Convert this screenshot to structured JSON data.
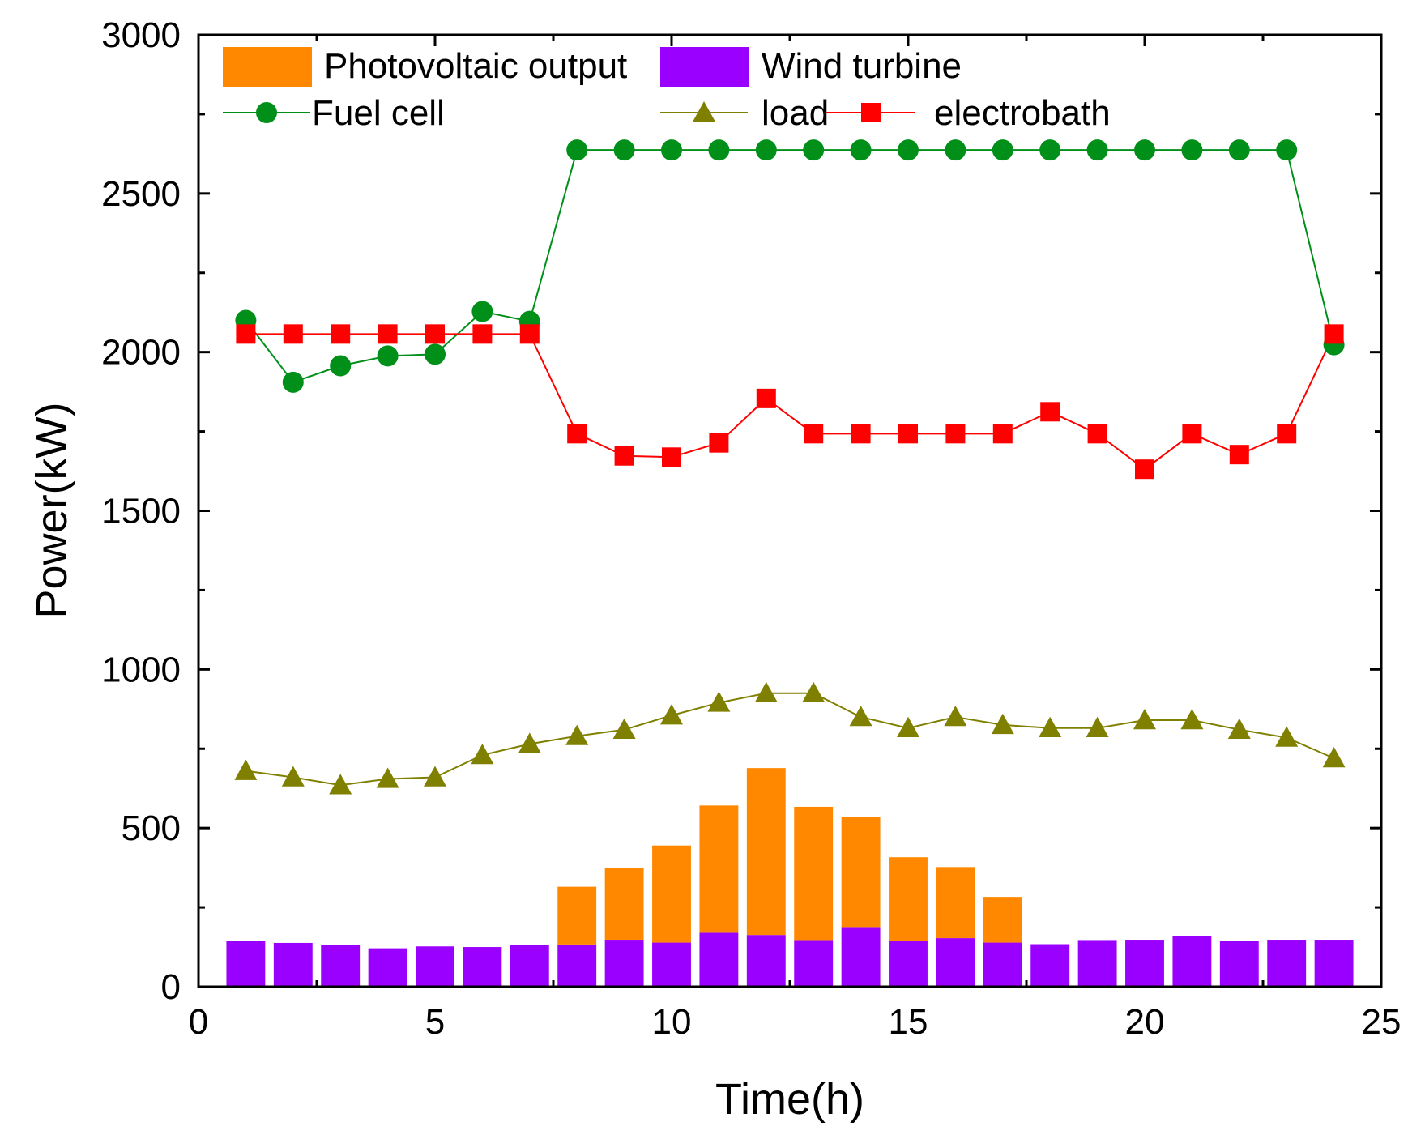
{
  "chart_data": {
    "type": "bar+line",
    "xlabel": "Time(h)",
    "ylabel": "Power(kW)",
    "xlim": [
      0,
      25
    ],
    "ylim": [
      0,
      3000
    ],
    "xticks": [
      0,
      5,
      10,
      15,
      20,
      25
    ],
    "yticks": [
      0,
      500,
      1000,
      1500,
      2000,
      2500,
      3000
    ],
    "x": [
      1,
      2,
      3,
      4,
      5,
      6,
      7,
      8,
      9,
      10,
      11,
      12,
      13,
      14,
      15,
      16,
      17,
      18,
      19,
      20,
      21,
      22,
      23,
      24
    ],
    "bars": [
      {
        "name": "Wind turbine",
        "color": "#9a00ff",
        "values": [
          143,
          138,
          131,
          121,
          127,
          125,
          132,
          133,
          148,
          139,
          170,
          163,
          147,
          188,
          143,
          153,
          139,
          134,
          147,
          148,
          159,
          144,
          148,
          148
        ]
      },
      {
        "name": "Photovoltaic output",
        "color": "#ff8800",
        "values": [
          0,
          0,
          0,
          0,
          0,
          0,
          0,
          182,
          225,
          306,
          401,
          526,
          420,
          348,
          265,
          224,
          144,
          0,
          0,
          0,
          0,
          0,
          0,
          0
        ]
      }
    ],
    "series": [
      {
        "name": "Fuel cell",
        "color": "#00901a",
        "marker": "circle",
        "values": [
          2100,
          1905,
          1957,
          1988,
          1993,
          2128,
          2097,
          2637,
          2637,
          2637,
          2637,
          2637,
          2637,
          2637,
          2637,
          2637,
          2637,
          2637,
          2637,
          2637,
          2637,
          2637,
          2637,
          2023
        ]
      },
      {
        "name": "load",
        "color": "#808000",
        "marker": "triangle",
        "values": [
          680,
          660,
          635,
          655,
          660,
          730,
          765,
          790,
          810,
          855,
          895,
          925,
          925,
          850,
          815,
          850,
          825,
          815,
          815,
          840,
          840,
          810,
          785,
          720
        ]
      },
      {
        "name": "electrobath",
        "color": "#ff0000",
        "marker": "square",
        "values": [
          2057,
          2057,
          2057,
          2057,
          2057,
          2057,
          2057,
          1743,
          1673,
          1669,
          1714,
          1854,
          1743,
          1743,
          1743,
          1743,
          1743,
          1812,
          1743,
          1631,
          1743,
          1677,
          1743,
          2057
        ]
      }
    ],
    "legend": [
      {
        "label": "Photovoltaic output",
        "kind": "bar",
        "color": "#ff8800"
      },
      {
        "label": "Wind turbine",
        "kind": "bar",
        "color": "#9a00ff"
      },
      {
        "label": "Fuel cell",
        "kind": "line",
        "marker": "circle",
        "color": "#00901a"
      },
      {
        "label": "load",
        "kind": "line",
        "marker": "triangle",
        "color": "#808000"
      },
      {
        "label": "electrobath",
        "kind": "line",
        "marker": "square",
        "color": "#ff0000"
      }
    ]
  }
}
